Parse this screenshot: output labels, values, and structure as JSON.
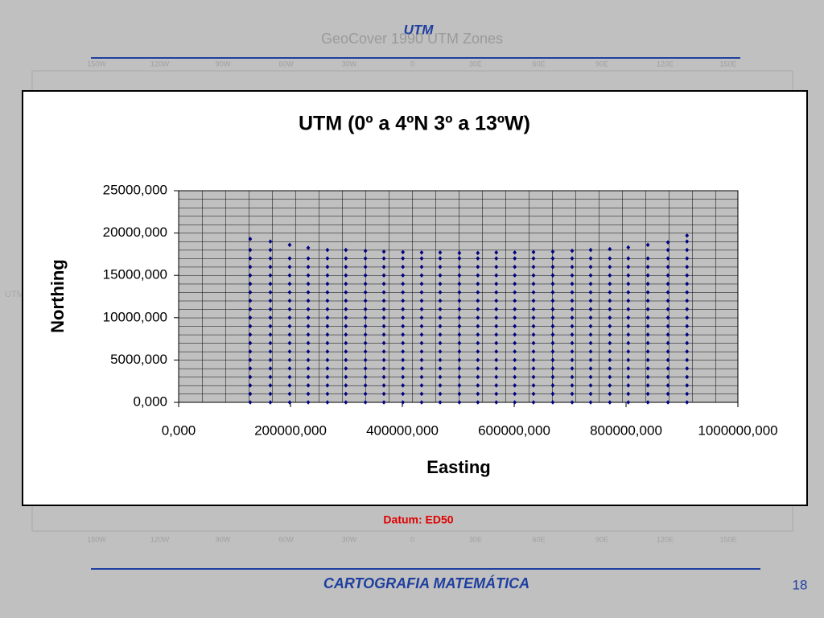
{
  "slide": {
    "title": "UTM",
    "map_title": "GeoCover 1990 UTM Zones",
    "map_labels": [
      "150W",
      "120W",
      "90W",
      "60W",
      "30W",
      "0",
      "30E",
      "60E",
      "90E",
      "120E",
      "150E"
    ],
    "map_side_label": "UTM",
    "datum": "Datum: ED50",
    "footer": "CARTOGRAFIA MATEMÁTICA",
    "page": "18"
  },
  "chart_data": {
    "type": "scatter",
    "title": "UTM (0º a 4ºN 3º a 13ºW)",
    "x_label": "Easting",
    "y_label": "Northing",
    "color": "#000080",
    "xlim": [
      0,
      1000000
    ],
    "xticks": [
      {
        "value": 0,
        "label": "0,000"
      },
      {
        "value": 200000,
        "label": "200000,000"
      },
      {
        "value": 400000,
        "label": "400000,000"
      },
      {
        "value": 600000,
        "label": "600000,000"
      },
      {
        "value": 800000,
        "label": "800000,000"
      },
      {
        "value": 1000000,
        "label": "1000000,000"
      }
    ],
    "ylim": [
      0,
      25000
    ],
    "yticks": [
      {
        "value": 0,
        "label": "0,000"
      },
      {
        "value": 5000,
        "label": "5000,000"
      },
      {
        "value": 10000,
        "label": "10000,000"
      },
      {
        "value": 15000,
        "label": "15000,000"
      },
      {
        "value": 20000,
        "label": "20000,000"
      },
      {
        "value": 25000,
        "label": "25000,000"
      }
    ],
    "columns": [
      {
        "x": 128000,
        "y": [
          0,
          1000,
          2000,
          3000,
          4000,
          5000,
          6000,
          7000,
          8000,
          9000,
          10000,
          11000,
          12000,
          13000,
          14000,
          15000,
          16000,
          17000,
          18000,
          19300
        ]
      },
      {
        "x": 164000,
        "y": [
          0,
          1000,
          2000,
          3000,
          4000,
          5000,
          6000,
          7000,
          8000,
          9000,
          10000,
          11000,
          12000,
          13000,
          14000,
          15000,
          16000,
          17000,
          18000,
          19000
        ]
      },
      {
        "x": 198500,
        "y": [
          0,
          1000,
          2000,
          3000,
          4000,
          5000,
          6000,
          7000,
          8000,
          9000,
          10000,
          11000,
          12000,
          13000,
          14000,
          15000,
          16000,
          17000,
          18600
        ]
      },
      {
        "x": 231700,
        "y": [
          0,
          1000,
          2000,
          3000,
          4000,
          5000,
          6000,
          7000,
          8000,
          9000,
          10000,
          11000,
          12000,
          13000,
          14000,
          15000,
          16000,
          17000,
          18250
        ]
      },
      {
        "x": 266000,
        "y": [
          0,
          1000,
          2000,
          3000,
          4000,
          5000,
          6000,
          7000,
          8000,
          9000,
          10000,
          11000,
          12000,
          13000,
          14000,
          15000,
          16000,
          17000,
          18000
        ]
      },
      {
        "x": 299000,
        "y": [
          0,
          1000,
          2000,
          3000,
          4000,
          5000,
          6000,
          7000,
          8000,
          9000,
          10000,
          11000,
          12000,
          13000,
          14000,
          15000,
          16000,
          17000,
          18000
        ]
      },
      {
        "x": 334000,
        "y": [
          0,
          1000,
          2000,
          3000,
          4000,
          5000,
          6000,
          7000,
          8000,
          9000,
          10000,
          11000,
          12000,
          13000,
          14000,
          15000,
          16000,
          17000,
          17900
        ]
      },
      {
        "x": 367000,
        "y": [
          0,
          1000,
          2000,
          3000,
          4000,
          5000,
          6000,
          7000,
          8000,
          9000,
          10000,
          11000,
          12000,
          13000,
          14000,
          15000,
          16000,
          17000,
          17800
        ]
      },
      {
        "x": 401000,
        "y": [
          0,
          1000,
          2000,
          3000,
          4000,
          5000,
          6000,
          7000,
          8000,
          9000,
          10000,
          11000,
          12000,
          13000,
          14000,
          15000,
          16000,
          17000,
          17750
        ]
      },
      {
        "x": 434500,
        "y": [
          0,
          1000,
          2000,
          3000,
          4000,
          5000,
          6000,
          7000,
          8000,
          9000,
          10000,
          11000,
          12000,
          13000,
          14000,
          15000,
          16000,
          17000,
          17700
        ]
      },
      {
        "x": 467600,
        "y": [
          0,
          1000,
          2000,
          3000,
          4000,
          5000,
          6000,
          7000,
          8000,
          9000,
          10000,
          11000,
          12000,
          13000,
          14000,
          15000,
          16000,
          17000,
          17700
        ]
      },
      {
        "x": 502000,
        "y": [
          0,
          1000,
          2000,
          3000,
          4000,
          5000,
          6000,
          7000,
          8000,
          9000,
          10000,
          11000,
          12000,
          13000,
          14000,
          15000,
          16000,
          17000,
          17650
        ]
      },
      {
        "x": 535000,
        "y": [
          0,
          1000,
          2000,
          3000,
          4000,
          5000,
          6000,
          7000,
          8000,
          9000,
          10000,
          11000,
          12000,
          13000,
          14000,
          15000,
          16000,
          17000,
          17650
        ]
      },
      {
        "x": 568000,
        "y": [
          0,
          1000,
          2000,
          3000,
          4000,
          5000,
          6000,
          7000,
          8000,
          9000,
          10000,
          11000,
          12000,
          13000,
          14000,
          15000,
          16000,
          17000,
          17700
        ]
      },
      {
        "x": 601000,
        "y": [
          0,
          1000,
          2000,
          3000,
          4000,
          5000,
          6000,
          7000,
          8000,
          9000,
          10000,
          11000,
          12000,
          13000,
          14000,
          15000,
          16000,
          17000,
          17700
        ]
      },
      {
        "x": 634500,
        "y": [
          0,
          1000,
          2000,
          3000,
          4000,
          5000,
          6000,
          7000,
          8000,
          9000,
          10000,
          11000,
          12000,
          13000,
          14000,
          15000,
          16000,
          17000,
          17750
        ]
      },
      {
        "x": 669000,
        "y": [
          0,
          1000,
          2000,
          3000,
          4000,
          5000,
          6000,
          7000,
          8000,
          9000,
          10000,
          11000,
          12000,
          13000,
          14000,
          15000,
          16000,
          17000,
          17800
        ]
      },
      {
        "x": 703600,
        "y": [
          0,
          1000,
          2000,
          3000,
          4000,
          5000,
          6000,
          7000,
          8000,
          9000,
          10000,
          11000,
          12000,
          13000,
          14000,
          15000,
          16000,
          17000,
          17900
        ]
      },
      {
        "x": 736700,
        "y": [
          0,
          1000,
          2000,
          3000,
          4000,
          5000,
          6000,
          7000,
          8000,
          9000,
          10000,
          11000,
          12000,
          13000,
          14000,
          15000,
          16000,
          17000,
          18000
        ]
      },
      {
        "x": 771000,
        "y": [
          0,
          1000,
          2000,
          3000,
          4000,
          5000,
          6000,
          7000,
          8000,
          9000,
          10000,
          11000,
          12000,
          13000,
          14000,
          15000,
          16000,
          17000,
          18100
        ]
      },
      {
        "x": 804000,
        "y": [
          0,
          1000,
          2000,
          3000,
          4000,
          5000,
          6000,
          7000,
          8000,
          9000,
          10000,
          11000,
          12000,
          13000,
          14000,
          15000,
          16000,
          17000,
          18300
        ]
      },
      {
        "x": 839000,
        "y": [
          0,
          1000,
          2000,
          3000,
          4000,
          5000,
          6000,
          7000,
          8000,
          9000,
          10000,
          11000,
          12000,
          13000,
          14000,
          15000,
          16000,
          17000,
          18600
        ]
      },
      {
        "x": 875000,
        "y": [
          0,
          1000,
          2000,
          3000,
          4000,
          5000,
          6000,
          7000,
          8000,
          9000,
          10000,
          11000,
          12000,
          13000,
          14000,
          15000,
          16000,
          17000,
          18000,
          18900
        ]
      },
      {
        "x": 909000,
        "y": [
          0,
          1000,
          2000,
          3000,
          4000,
          5000,
          6000,
          7000,
          8000,
          9000,
          10000,
          11000,
          12000,
          13000,
          14000,
          15000,
          16000,
          17000,
          18000,
          19000,
          19700
        ]
      }
    ]
  }
}
